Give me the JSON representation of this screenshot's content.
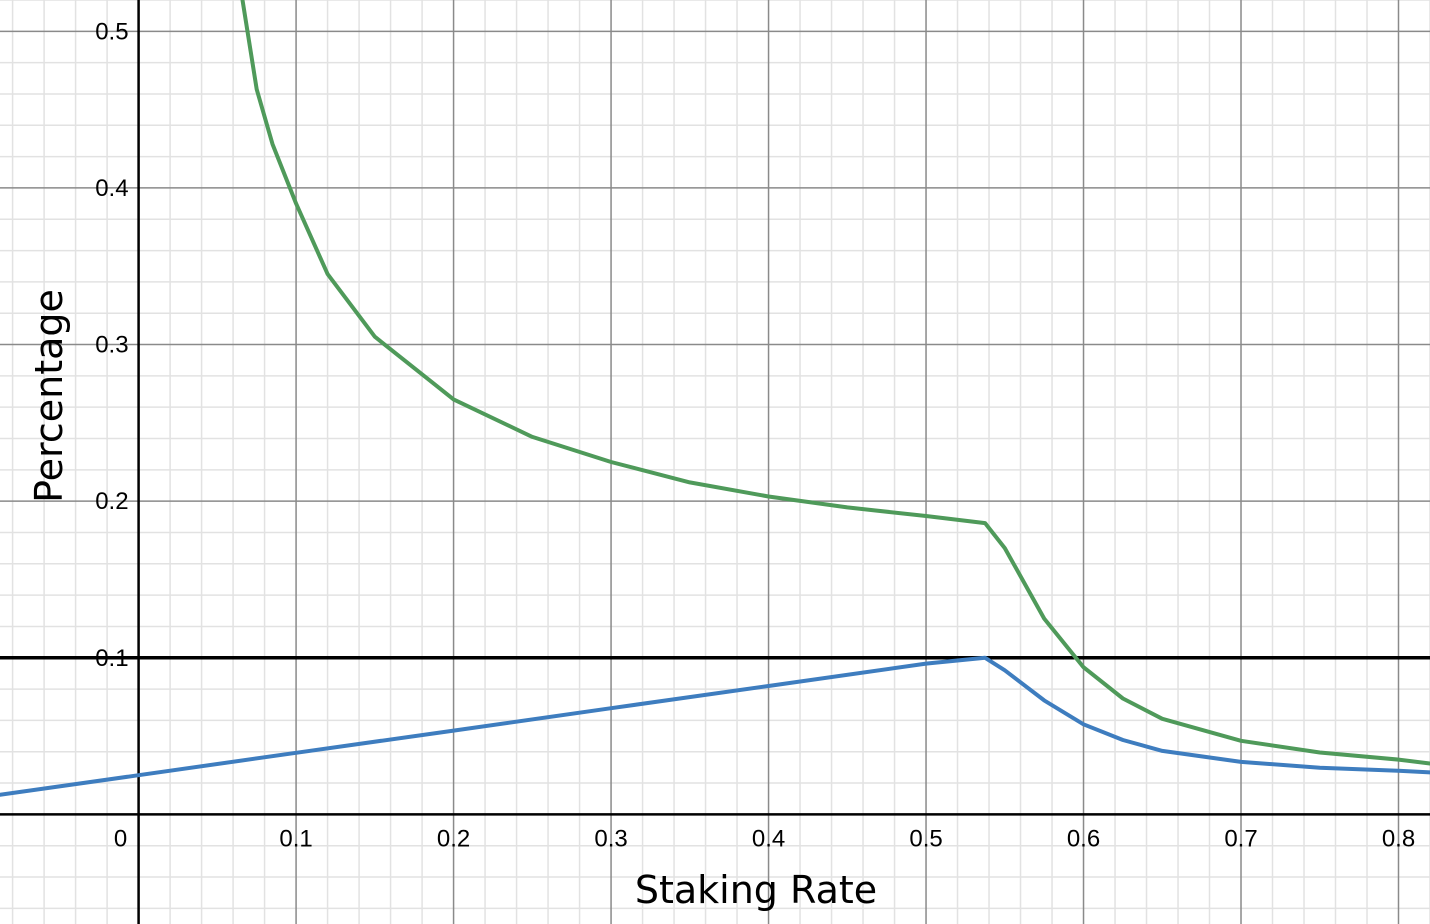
{
  "chart_data": {
    "type": "line",
    "title": "",
    "xlabel": "Staking Rate",
    "ylabel": "Percentage",
    "xlim": [
      -0.088,
      0.82
    ],
    "ylim": [
      -0.07,
      0.52
    ],
    "grid": true,
    "minor_grid": true,
    "x_ticks": [
      "0",
      "0.1",
      "0.2",
      "0.3",
      "0.4",
      "0.5",
      "0.6",
      "0.7",
      "0.8"
    ],
    "y_ticks": [
      "0.1",
      "0.2",
      "0.3",
      "0.4",
      "0.5"
    ],
    "reference_lines": [
      {
        "orientation": "horizontal",
        "y": 0.1,
        "color": "#000000"
      }
    ],
    "series": [
      {
        "color": "#3e7dbf",
        "x": [
          -0.088,
          0.0,
          0.1,
          0.2,
          0.3,
          0.4,
          0.5,
          0.5375,
          0.55,
          0.575,
          0.6,
          0.625,
          0.65,
          0.7,
          0.75,
          0.8,
          0.82
        ],
        "y": [
          0.0125,
          0.025,
          0.0393,
          0.0535,
          0.0678,
          0.082,
          0.0963,
          0.1,
          0.092,
          0.0728,
          0.0575,
          0.0475,
          0.0405,
          0.0335,
          0.0298,
          0.0278,
          0.0268
        ]
      },
      {
        "color": "#4f9a5a",
        "x": [
          0.066,
          0.075,
          0.085,
          0.1,
          0.12,
          0.15,
          0.2,
          0.25,
          0.3,
          0.35,
          0.4,
          0.45,
          0.5,
          0.5375,
          0.55,
          0.575,
          0.6,
          0.625,
          0.65,
          0.7,
          0.75,
          0.8,
          0.82
        ],
        "y": [
          0.52,
          0.463,
          0.428,
          0.39,
          0.345,
          0.305,
          0.265,
          0.241,
          0.225,
          0.212,
          0.203,
          0.196,
          0.1905,
          0.186,
          0.17,
          0.125,
          0.094,
          0.074,
          0.061,
          0.047,
          0.0395,
          0.035,
          0.0325
        ]
      }
    ]
  }
}
